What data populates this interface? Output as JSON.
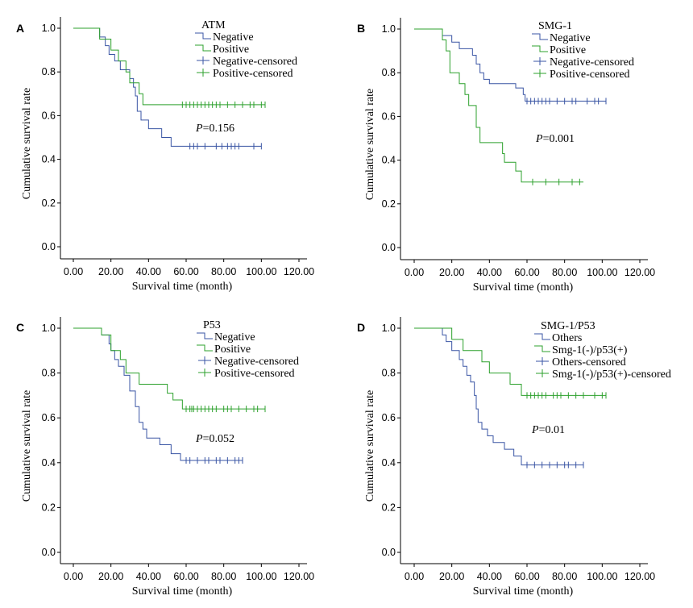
{
  "colors": {
    "negative": "#3a55a4",
    "positive": "#2ca02c"
  },
  "chart_data": [
    {
      "type": "line",
      "panel": "A",
      "legend_title": "ATM",
      "legend": [
        "Negative",
        "Positive",
        "Negative-censored",
        "Positive-censored"
      ],
      "p_value_prefix": "P",
      "p_value": "=0.156",
      "xlabel": "Survival time (month)",
      "ylabel": "Cumulative survival rate",
      "xlim": [
        0,
        120
      ],
      "ylim": [
        0,
        1
      ],
      "x_ticks": [
        "0.00",
        "20.00",
        "40.00",
        "60.00",
        "80.00",
        "100.00",
        "120.00"
      ],
      "y_ticks": [
        "0.0",
        "0.2",
        "0.4",
        "0.6",
        "0.8",
        "1.0"
      ],
      "series": [
        {
          "name": "Negative",
          "steps": [
            [
              0,
              1.0
            ],
            [
              14,
              0.96
            ],
            [
              17,
              0.92
            ],
            [
              19,
              0.88
            ],
            [
              22,
              0.85
            ],
            [
              25,
              0.81
            ],
            [
              30,
              0.77
            ],
            [
              32,
              0.73
            ],
            [
              33,
              0.69
            ],
            [
              34,
              0.62
            ],
            [
              36,
              0.58
            ],
            [
              39,
              0.58
            ],
            [
              40,
              0.54
            ],
            [
              46,
              0.54
            ],
            [
              47,
              0.5
            ],
            [
              51,
              0.5
            ],
            [
              52,
              0.46
            ],
            [
              100,
              0.46
            ]
          ],
          "censored": [
            62,
            64,
            66,
            70,
            76,
            79,
            82,
            84,
            86,
            88,
            96,
            100
          ]
        },
        {
          "name": "Positive",
          "steps": [
            [
              0,
              1.0
            ],
            [
              14,
              0.95
            ],
            [
              20,
              0.9
            ],
            [
              24,
              0.85
            ],
            [
              28,
              0.8
            ],
            [
              30,
              0.75
            ],
            [
              35,
              0.7
            ],
            [
              37,
              0.65
            ],
            [
              102,
              0.65
            ]
          ],
          "censored": [
            58,
            60,
            62,
            64,
            66,
            68,
            70,
            72,
            74,
            76,
            78,
            82,
            86,
            90,
            94,
            96,
            100,
            102
          ]
        }
      ]
    },
    {
      "type": "line",
      "panel": "B",
      "legend_title": "SMG-1",
      "legend": [
        "Negative",
        "Positive",
        "Negative-censored",
        "Positive-censored"
      ],
      "p_value_prefix": "P",
      "p_value": "=0.001",
      "xlabel": "Survival time (month)",
      "ylabel": "Cumulative survival rate",
      "xlim": [
        0,
        120
      ],
      "ylim": [
        0,
        1
      ],
      "x_ticks": [
        "0.00",
        "20.00",
        "40.00",
        "60.00",
        "80.00",
        "100.00",
        "120.00"
      ],
      "y_ticks": [
        "0.0",
        "0.2",
        "0.4",
        "0.6",
        "0.8",
        "1.0"
      ],
      "series": [
        {
          "name": "Negative",
          "steps": [
            [
              0,
              1.0
            ],
            [
              15,
              0.97
            ],
            [
              20,
              0.94
            ],
            [
              24,
              0.91
            ],
            [
              31,
              0.88
            ],
            [
              33,
              0.84
            ],
            [
              35,
              0.8
            ],
            [
              37,
              0.77
            ],
            [
              40,
              0.75
            ],
            [
              54,
              0.73
            ],
            [
              58,
              0.7
            ],
            [
              59,
              0.67
            ],
            [
              102,
              0.67
            ]
          ],
          "censored": [
            60,
            62,
            64,
            66,
            68,
            70,
            72,
            76,
            80,
            84,
            86,
            92,
            96,
            98,
            102
          ]
        },
        {
          "name": "Positive",
          "steps": [
            [
              0,
              1.0
            ],
            [
              15,
              0.95
            ],
            [
              17,
              0.9
            ],
            [
              19,
              0.8
            ],
            [
              24,
              0.75
            ],
            [
              27,
              0.7
            ],
            [
              29,
              0.65
            ],
            [
              33,
              0.55
            ],
            [
              35,
              0.48
            ],
            [
              47,
              0.43
            ],
            [
              48,
              0.39
            ],
            [
              54,
              0.35
            ],
            [
              57,
              0.3
            ],
            [
              90,
              0.3
            ]
          ],
          "censored": [
            63,
            70,
            77,
            84,
            88
          ]
        }
      ]
    },
    {
      "type": "line",
      "panel": "C",
      "legend_title": "P53",
      "legend": [
        "Negative",
        "Positive",
        "Negative-censored",
        "Positive-censored"
      ],
      "p_value_prefix": "P",
      "p_value": "=0.052",
      "xlabel": "Survival time (month)",
      "ylabel": "Cumulative survival rate",
      "xlim": [
        0,
        120
      ],
      "ylim": [
        0,
        1
      ],
      "x_ticks": [
        "0.00",
        "20.00",
        "40.00",
        "60.00",
        "80.00",
        "100.00",
        "120.00"
      ],
      "y_ticks": [
        "0.0",
        "0.2",
        "0.4",
        "0.6",
        "0.8",
        "1.0"
      ],
      "series": [
        {
          "name": "Negative",
          "steps": [
            [
              0,
              1.0
            ],
            [
              15,
              0.97
            ],
            [
              19,
              0.93
            ],
            [
              20,
              0.9
            ],
            [
              22,
              0.86
            ],
            [
              24,
              0.83
            ],
            [
              27,
              0.79
            ],
            [
              30,
              0.72
            ],
            [
              33,
              0.65
            ],
            [
              35,
              0.58
            ],
            [
              37,
              0.55
            ],
            [
              39,
              0.51
            ],
            [
              45,
              0.51
            ],
            [
              46,
              0.48
            ],
            [
              50,
              0.48
            ],
            [
              52,
              0.44
            ],
            [
              57,
              0.41
            ],
            [
              90,
              0.41
            ]
          ],
          "censored": [
            60,
            62,
            66,
            70,
            72,
            76,
            78,
            82,
            86,
            88,
            90
          ]
        },
        {
          "name": "Positive",
          "steps": [
            [
              0,
              1.0
            ],
            [
              15,
              0.97
            ],
            [
              20,
              0.9
            ],
            [
              25,
              0.86
            ],
            [
              28,
              0.8
            ],
            [
              35,
              0.75
            ],
            [
              50,
              0.71
            ],
            [
              53,
              0.68
            ],
            [
              58,
              0.64
            ],
            [
              102,
              0.64
            ]
          ],
          "censored": [
            60,
            62,
            63,
            64,
            66,
            68,
            70,
            72,
            74,
            76,
            80,
            82,
            84,
            88,
            92,
            96,
            98,
            102
          ]
        }
      ]
    },
    {
      "type": "line",
      "panel": "D",
      "legend_title": "SMG-1/P53",
      "legend": [
        "Others",
        "Smg-1(-)/p53(+)",
        "Others-censored",
        "Smg-1(-)/p53(+)-censored"
      ],
      "p_value_prefix": "P",
      "p_value": "=0.01",
      "xlabel": "Survival time (month)",
      "ylabel": "Cumulative survival rate",
      "xlim": [
        0,
        120
      ],
      "ylim": [
        0,
        1
      ],
      "x_ticks": [
        "0.00",
        "20.00",
        "40.00",
        "60.00",
        "80.00",
        "100.00",
        "120.00"
      ],
      "y_ticks": [
        "0.0",
        "0.2",
        "0.4",
        "0.6",
        "0.8",
        "1.0"
      ],
      "series": [
        {
          "name": "Others",
          "steps": [
            [
              0,
              1.0
            ],
            [
              15,
              0.97
            ],
            [
              17,
              0.94
            ],
            [
              20,
              0.9
            ],
            [
              24,
              0.86
            ],
            [
              26,
              0.83
            ],
            [
              28,
              0.79
            ],
            [
              30,
              0.76
            ],
            [
              32,
              0.7
            ],
            [
              33,
              0.64
            ],
            [
              34,
              0.58
            ],
            [
              36,
              0.55
            ],
            [
              39,
              0.52
            ],
            [
              42,
              0.49
            ],
            [
              48,
              0.46
            ],
            [
              53,
              0.43
            ],
            [
              57,
              0.39
            ],
            [
              90,
              0.39
            ]
          ],
          "censored": [
            60,
            64,
            68,
            72,
            76,
            80,
            82,
            86,
            90
          ]
        },
        {
          "name": "Smg-1(-)/p53(+)",
          "steps": [
            [
              0,
              1.0
            ],
            [
              20,
              0.95
            ],
            [
              26,
              0.9
            ],
            [
              36,
              0.85
            ],
            [
              40,
              0.8
            ],
            [
              51,
              0.75
            ],
            [
              57,
              0.7
            ],
            [
              102,
              0.7
            ]
          ],
          "censored": [
            60,
            62,
            64,
            66,
            68,
            70,
            74,
            76,
            78,
            82,
            86,
            90,
            96,
            100,
            102
          ]
        }
      ]
    }
  ]
}
